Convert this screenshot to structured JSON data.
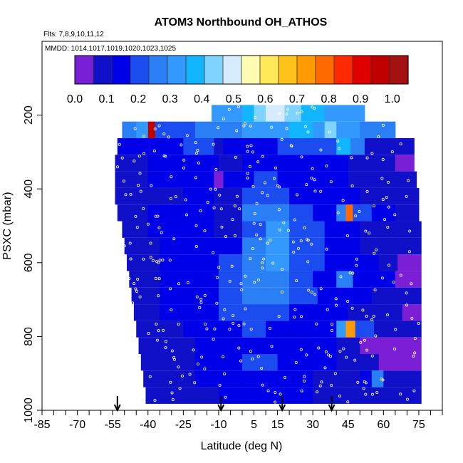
{
  "chart_data": {
    "type": "heatmap",
    "title": "ATOM3 Northbound OH_ATHOS",
    "flights_label": "Flts: 7,8,9,10,11,12",
    "dates_label": "MMDD: 1014,1017,1019,1020,1023,1025",
    "xlabel": "Latitude (deg N)",
    "ylabel": "PSXC (mbar)",
    "xlim": [
      -85,
      85
    ],
    "ylim": [
      1000,
      0
    ],
    "x_ticks": [
      -85,
      -70,
      -55,
      -40,
      -25,
      -10,
      5,
      15,
      30,
      45,
      60,
      75
    ],
    "x_tick_labels": [
      "-85",
      "-70",
      "-55",
      "-40",
      "-25",
      "-10",
      "5",
      "15",
      "30",
      "45",
      "60",
      "75"
    ],
    "y_ticks": [
      200,
      400,
      600,
      800,
      1000
    ],
    "y_tick_labels": [
      "200",
      "400",
      "600",
      "800",
      "1000"
    ],
    "colorbar": {
      "min": 0.0,
      "max": 1.05,
      "ticks": [
        "0.0",
        "0.1",
        "0.2",
        "0.3",
        "0.4",
        "0.5",
        "0.6",
        "0.7",
        "0.8",
        "0.9",
        "1.0"
      ],
      "colors": [
        "#7a1fd6",
        "#1010c8",
        "#0000e8",
        "#1a4cf0",
        "#2b7ff5",
        "#3399ff",
        "#12b5ff",
        "#7fd4ff",
        "#d5ecff",
        "#fffbb0",
        "#ffe85a",
        "#ffc21a",
        "#ff9a00",
        "#ff6a00",
        "#ff2a00",
        "#e00000",
        "#c00000",
        "#a31010"
      ]
    },
    "arrows_lat": [
      -53,
      -9,
      17,
      38
    ],
    "bands": [
      {
        "p": 195,
        "x0": -13,
        "x1": 52,
        "segs": [
          [
            -13,
            0.32
          ],
          [
            -5,
            0.32
          ],
          [
            0,
            0.4
          ],
          [
            5,
            0.45
          ],
          [
            10,
            0.48
          ],
          [
            18,
            0.42
          ],
          [
            25,
            0.38
          ],
          [
            35,
            0.33
          ],
          [
            50,
            0.32
          ]
        ]
      },
      {
        "p": 240,
        "x0": -51,
        "x1": 65,
        "segs": [
          [
            -51,
            0.25
          ],
          [
            -45,
            0.3
          ],
          [
            -40,
            0.95
          ],
          [
            -37,
            0.2
          ],
          [
            -30,
            0.22
          ],
          [
            -20,
            0.24
          ],
          [
            -10,
            0.26
          ],
          [
            0,
            0.3
          ],
          [
            10,
            0.33
          ],
          [
            20,
            0.35
          ],
          [
            30,
            0.3
          ],
          [
            35,
            0.42
          ],
          [
            40,
            0.3
          ],
          [
            50,
            0.25
          ],
          [
            65,
            0.25
          ]
        ]
      },
      {
        "p": 285,
        "x0": -53,
        "x1": 73,
        "segs": [
          [
            -53,
            0.12
          ],
          [
            -40,
            0.15
          ],
          [
            -25,
            0.18
          ],
          [
            -12,
            0.06
          ],
          [
            -8,
            0.14
          ],
          [
            0,
            0.15
          ],
          [
            15,
            0.18
          ],
          [
            30,
            0.2
          ],
          [
            40,
            0.4
          ],
          [
            46,
            0.28
          ],
          [
            52,
            0.1
          ],
          [
            60,
            0.07
          ],
          [
            73,
            0.05
          ]
        ]
      },
      {
        "p": 330,
        "x0": -54,
        "x1": 73,
        "segs": [
          [
            -54,
            0.11
          ],
          [
            -40,
            0.12
          ],
          [
            -25,
            0.14
          ],
          [
            -10,
            0.1
          ],
          [
            0,
            0.14
          ],
          [
            15,
            0.16
          ],
          [
            30,
            0.13
          ],
          [
            45,
            0.11
          ],
          [
            55,
            0.08
          ],
          [
            65,
            0.05
          ],
          [
            73,
            0.04
          ]
        ]
      },
      {
        "p": 375,
        "x0": -54,
        "x1": 74,
        "segs": [
          [
            -54,
            0.1
          ],
          [
            -40,
            0.12
          ],
          [
            -28,
            0.15
          ],
          [
            -12,
            0.05
          ],
          [
            -8,
            0.14
          ],
          [
            5,
            0.18
          ],
          [
            15,
            0.16
          ],
          [
            30,
            0.12
          ],
          [
            45,
            0.1
          ],
          [
            60,
            0.07
          ],
          [
            74,
            0.05
          ]
        ]
      },
      {
        "p": 420,
        "x0": -54,
        "x1": 75,
        "segs": [
          [
            -54,
            0.1
          ],
          [
            -40,
            0.11
          ],
          [
            -25,
            0.13
          ],
          [
            -12,
            0.08
          ],
          [
            0,
            0.18
          ],
          [
            10,
            0.22
          ],
          [
            20,
            0.15
          ],
          [
            35,
            0.12
          ],
          [
            50,
            0.1
          ],
          [
            62,
            0.06
          ],
          [
            75,
            0.05
          ]
        ]
      },
      {
        "p": 465,
        "x0": -53,
        "x1": 75,
        "segs": [
          [
            -53,
            0.1
          ],
          [
            -40,
            0.14
          ],
          [
            -25,
            0.17
          ],
          [
            -12,
            0.08
          ],
          [
            0,
            0.25
          ],
          [
            10,
            0.28
          ],
          [
            20,
            0.2
          ],
          [
            30,
            0.17
          ],
          [
            40,
            0.25
          ],
          [
            44,
            0.8
          ],
          [
            47,
            0.2
          ],
          [
            55,
            0.12
          ],
          [
            65,
            0.06
          ],
          [
            75,
            0.05
          ]
        ]
      },
      {
        "p": 510,
        "x0": -51,
        "x1": 76,
        "segs": [
          [
            -51,
            0.1
          ],
          [
            -40,
            0.12
          ],
          [
            -25,
            0.14
          ],
          [
            -12,
            0.06
          ],
          [
            0,
            0.2
          ],
          [
            10,
            0.3
          ],
          [
            20,
            0.22
          ],
          [
            35,
            0.13
          ],
          [
            50,
            0.1
          ],
          [
            62,
            0.06
          ],
          [
            76,
            0.05
          ]
        ]
      },
      {
        "p": 555,
        "x0": -50,
        "x1": 76,
        "segs": [
          [
            -50,
            0.11
          ],
          [
            -35,
            0.13
          ],
          [
            -20,
            0.16
          ],
          [
            -10,
            0.14
          ],
          [
            0,
            0.25
          ],
          [
            10,
            0.3
          ],
          [
            20,
            0.22
          ],
          [
            35,
            0.14
          ],
          [
            50,
            0.11
          ],
          [
            63,
            0.07
          ],
          [
            76,
            0.05
          ]
        ]
      },
      {
        "p": 600,
        "x0": -49,
        "x1": 76,
        "segs": [
          [
            -49,
            0.11
          ],
          [
            -35,
            0.14
          ],
          [
            -20,
            0.17
          ],
          [
            -10,
            0.2
          ],
          [
            0,
            0.28
          ],
          [
            10,
            0.3
          ],
          [
            20,
            0.2
          ],
          [
            35,
            0.15
          ],
          [
            45,
            0.12
          ],
          [
            58,
            0.08
          ],
          [
            66,
            0.05
          ],
          [
            76,
            0.04
          ]
        ]
      },
      {
        "p": 645,
        "x0": -48,
        "x1": 76,
        "segs": [
          [
            -48,
            0.1
          ],
          [
            -35,
            0.12
          ],
          [
            -20,
            0.15
          ],
          [
            -10,
            0.2
          ],
          [
            0,
            0.28
          ],
          [
            10,
            0.25
          ],
          [
            20,
            0.18
          ],
          [
            30,
            0.13
          ],
          [
            40,
            0.25
          ],
          [
            47,
            0.12
          ],
          [
            55,
            0.15
          ],
          [
            65,
            0.05
          ],
          [
            76,
            0.04
          ]
        ]
      },
      {
        "p": 690,
        "x0": -47,
        "x1": 76,
        "segs": [
          [
            -47,
            0.1
          ],
          [
            -35,
            0.12
          ],
          [
            -20,
            0.16
          ],
          [
            -10,
            0.18
          ],
          [
            0,
            0.25
          ],
          [
            10,
            0.25
          ],
          [
            20,
            0.18
          ],
          [
            32,
            0.14
          ],
          [
            45,
            0.12
          ],
          [
            55,
            0.08
          ],
          [
            65,
            0.06
          ],
          [
            76,
            0.04
          ]
        ]
      },
      {
        "p": 735,
        "x0": -46,
        "x1": 76,
        "segs": [
          [
            -46,
            0.1
          ],
          [
            -35,
            0.12
          ],
          [
            -22,
            0.15
          ],
          [
            -10,
            0.18
          ],
          [
            0,
            0.22
          ],
          [
            10,
            0.22
          ],
          [
            20,
            0.17
          ],
          [
            30,
            0.13
          ],
          [
            45,
            0.11
          ],
          [
            58,
            0.08
          ],
          [
            68,
            0.05
          ],
          [
            76,
            0.04
          ]
        ]
      },
      {
        "p": 780,
        "x0": -45,
        "x1": 76,
        "segs": [
          [
            -45,
            0.1
          ],
          [
            -35,
            0.11
          ],
          [
            -25,
            0.14
          ],
          [
            -10,
            0.13
          ],
          [
            0,
            0.18
          ],
          [
            10,
            0.15
          ],
          [
            20,
            0.13
          ],
          [
            32,
            0.12
          ],
          [
            40,
            0.3
          ],
          [
            44,
            0.75
          ],
          [
            48,
            0.2
          ],
          [
            56,
            0.1
          ],
          [
            66,
            0.06
          ],
          [
            76,
            0.05
          ]
        ]
      },
      {
        "p": 825,
        "x0": -44,
        "x1": 76,
        "segs": [
          [
            -44,
            0.1
          ],
          [
            -32,
            0.11
          ],
          [
            -20,
            0.13
          ],
          [
            -10,
            0.12
          ],
          [
            0,
            0.17
          ],
          [
            15,
            0.15
          ],
          [
            30,
            0.12
          ],
          [
            40,
            0.06
          ],
          [
            50,
            0.05
          ],
          [
            60,
            0.04
          ],
          [
            76,
            0.04
          ]
        ]
      },
      {
        "p": 870,
        "x0": -43,
        "x1": 76,
        "segs": [
          [
            -43,
            0.09
          ],
          [
            -30,
            0.1
          ],
          [
            -20,
            0.12
          ],
          [
            -10,
            0.14
          ],
          [
            0,
            0.18
          ],
          [
            15,
            0.15
          ],
          [
            30,
            0.12
          ],
          [
            40,
            0.1
          ],
          [
            48,
            0.06
          ],
          [
            58,
            0.05
          ],
          [
            76,
            0.04
          ]
        ]
      },
      {
        "p": 915,
        "x0": -42,
        "x1": 76,
        "segs": [
          [
            -42,
            0.09
          ],
          [
            -30,
            0.1
          ],
          [
            -20,
            0.13
          ],
          [
            -10,
            0.12
          ],
          [
            0,
            0.16
          ],
          [
            15,
            0.14
          ],
          [
            30,
            0.11
          ],
          [
            40,
            0.09
          ],
          [
            50,
            0.12
          ],
          [
            55,
            0.28
          ],
          [
            60,
            0.06
          ],
          [
            76,
            0.04
          ]
        ]
      },
      {
        "p": 960,
        "x0": -41,
        "x1": 76,
        "segs": [
          [
            -41,
            0.09
          ],
          [
            -30,
            0.1
          ],
          [
            -20,
            0.11
          ],
          [
            -10,
            0.12
          ],
          [
            0,
            0.14
          ],
          [
            15,
            0.13
          ],
          [
            30,
            0.11
          ],
          [
            40,
            0.1
          ],
          [
            50,
            0.08
          ],
          [
            60,
            0.06
          ],
          [
            76,
            0.05
          ]
        ]
      }
    ]
  }
}
